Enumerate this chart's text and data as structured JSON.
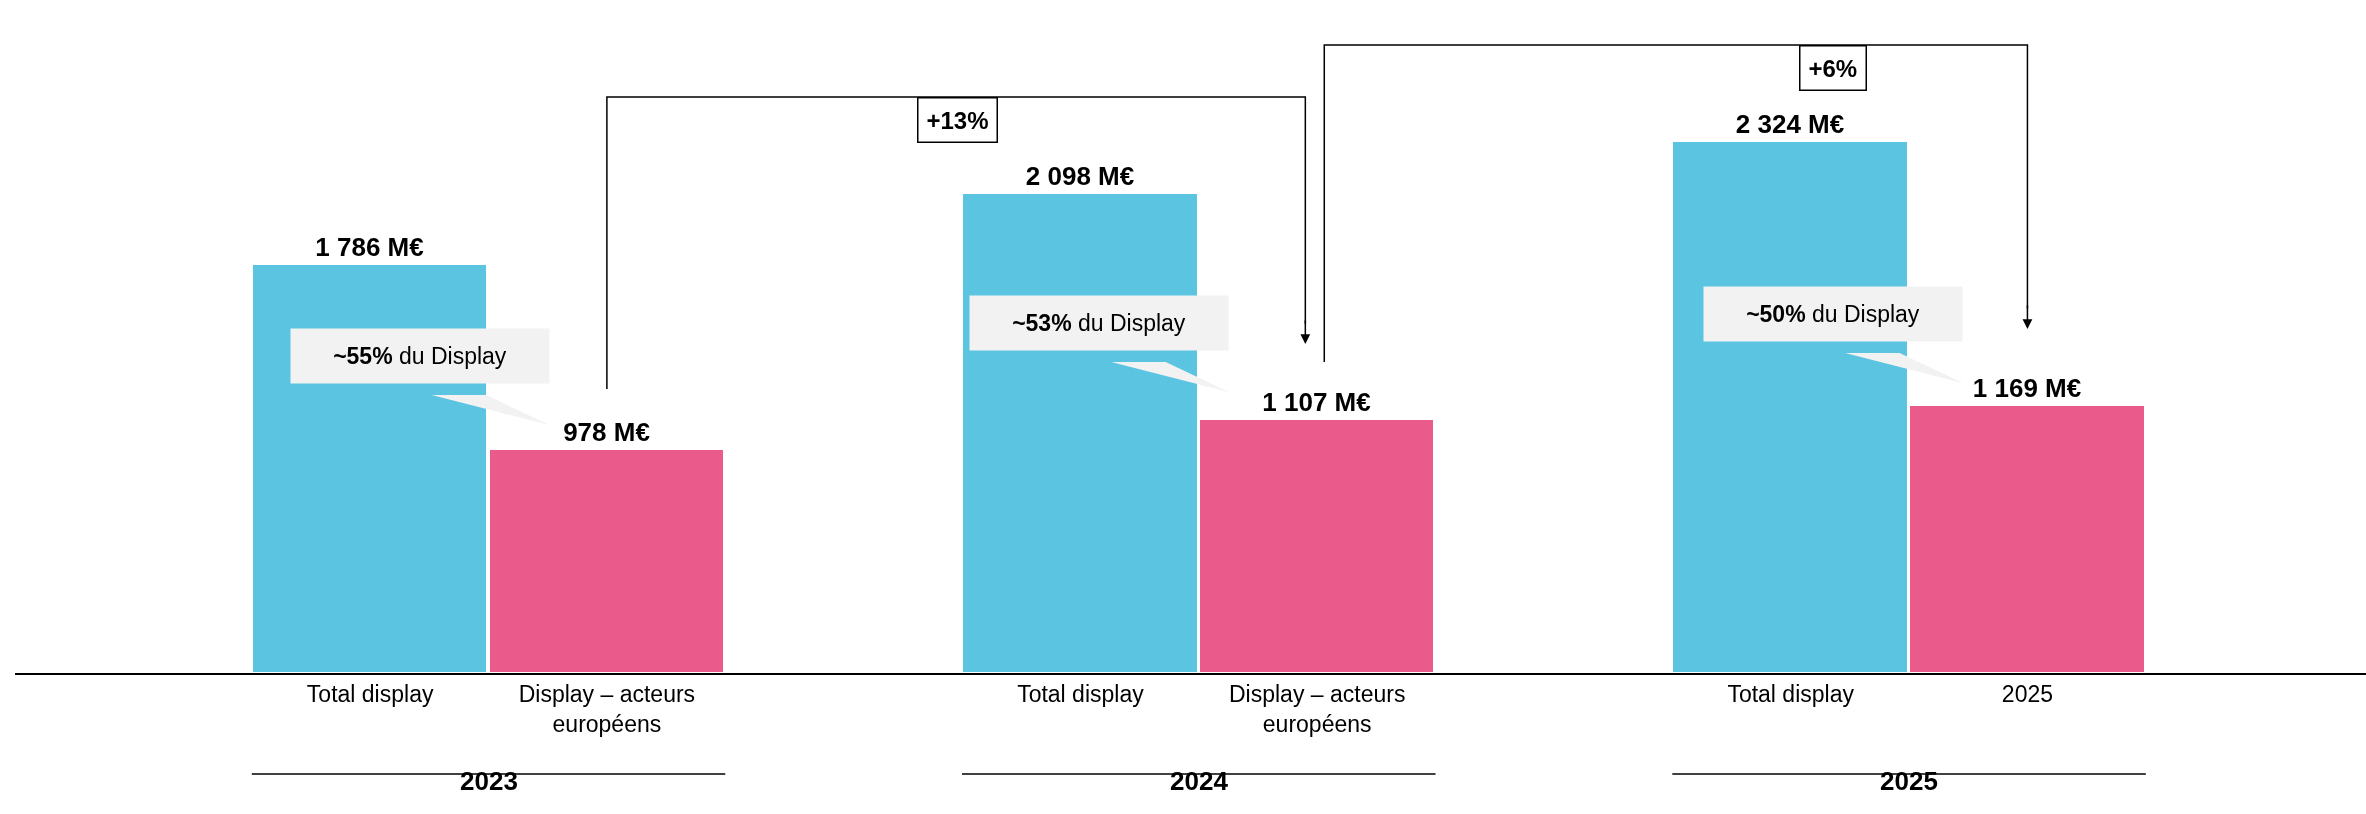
{
  "chart_data": {
    "type": "bar",
    "categories": [
      "Total display",
      "Display – acteurs européens",
      null,
      "Total display",
      "Display – acteurs européens",
      null,
      "Total display",
      "2025"
    ],
    "values": [
      1786,
      978,
      null,
      2098,
      1107,
      null,
      2324,
      1169
    ],
    "colors": [
      "#5bc4e1",
      "#ea5b8c",
      "#ffffff",
      "#5bc4e1",
      "#ea5b8c",
      "#ffffff",
      "#5bc4e1",
      "#ea5b8c"
    ],
    "value_labels": [
      "1 786 M€",
      "978 M€",
      null,
      "2 098 M€",
      "1 107 M€",
      null,
      "2 324 M€",
      "1 169 M€"
    ],
    "data_labels": true,
    "tick_labels": "x",
    "annotations": [
      "~55% du Display",
      "~53% du Display",
      "~50% du Display",
      "+13%",
      "+6%",
      "2023",
      "2024",
      "2025"
    ]
  }
}
